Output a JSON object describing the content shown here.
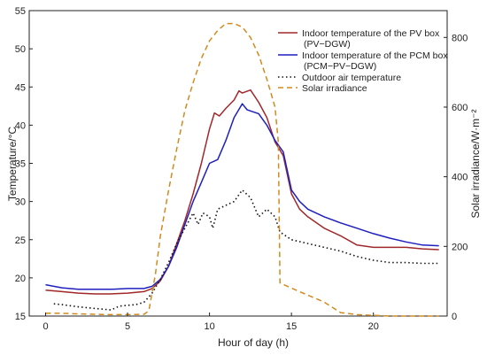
{
  "chart_data": {
    "type": "line",
    "title": "",
    "xlabel": "Hour of day (h)",
    "ylabel_left": "Temperature/°C",
    "ylabel_right": "Solar irradiance/W·m⁻²",
    "xlim": [
      -1,
      24.5
    ],
    "ylim_left": [
      15,
      55
    ],
    "ylim_right": [
      0,
      877
    ],
    "x_ticks": [
      0,
      5,
      10,
      15,
      20
    ],
    "y_ticks_left": [
      15,
      20,
      25,
      30,
      35,
      40,
      45,
      50,
      55
    ],
    "y_ticks_right": [
      0,
      200,
      400,
      600,
      800
    ],
    "grid": false,
    "legend_position": "top-right",
    "series": [
      {
        "name": "Indoor temperature of the PV box",
        "name_line2": "(PV−DGW)",
        "axis": "left",
        "color": "#a0282a",
        "style": "solid",
        "points": [
          [
            0,
            18.4
          ],
          [
            1,
            18.2
          ],
          [
            2,
            18.0
          ],
          [
            3,
            17.9
          ],
          [
            4,
            17.9
          ],
          [
            5,
            18.0
          ],
          [
            6,
            18.2
          ],
          [
            6.5,
            18.6
          ],
          [
            7,
            19.6
          ],
          [
            7.5,
            21.5
          ],
          [
            8,
            24.5
          ],
          [
            8.5,
            27.5
          ],
          [
            9,
            31
          ],
          [
            9.5,
            35
          ],
          [
            10,
            39.5
          ],
          [
            10.3,
            41.6
          ],
          [
            10.6,
            41.2
          ],
          [
            11,
            42.2
          ],
          [
            11.5,
            43.3
          ],
          [
            11.8,
            44.5
          ],
          [
            12,
            44.2
          ],
          [
            12.5,
            44.6
          ],
          [
            13,
            43
          ],
          [
            13.5,
            41
          ],
          [
            14,
            37.8
          ],
          [
            14.5,
            36
          ],
          [
            15,
            31
          ],
          [
            15.5,
            29
          ],
          [
            16,
            28
          ],
          [
            17,
            26.5
          ],
          [
            18,
            25.5
          ],
          [
            19,
            24.3
          ],
          [
            20,
            24.0
          ],
          [
            21,
            24.0
          ],
          [
            22,
            24.0
          ],
          [
            23,
            23.8
          ],
          [
            24,
            23.7
          ]
        ]
      },
      {
        "name": "Indoor temperature of the PCM box",
        "name_line2": "(PCM−PV−DGW)",
        "axis": "left",
        "color": "#1f1fbf",
        "style": "solid",
        "points": [
          [
            0,
            19.1
          ],
          [
            1,
            18.7
          ],
          [
            2,
            18.5
          ],
          [
            3,
            18.5
          ],
          [
            4,
            18.5
          ],
          [
            5,
            18.6
          ],
          [
            6,
            18.6
          ],
          [
            6.5,
            18.9
          ],
          [
            7,
            19.8
          ],
          [
            7.5,
            21.5
          ],
          [
            8,
            24
          ],
          [
            8.5,
            27
          ],
          [
            9,
            30
          ],
          [
            9.5,
            32.5
          ],
          [
            10,
            35
          ],
          [
            10.5,
            35.5
          ],
          [
            11,
            38
          ],
          [
            11.5,
            41
          ],
          [
            12,
            42.8
          ],
          [
            12.3,
            42
          ],
          [
            13,
            41.5
          ],
          [
            13.5,
            40
          ],
          [
            14,
            38
          ],
          [
            14.5,
            36.5
          ],
          [
            15,
            31.5
          ],
          [
            15.5,
            30
          ],
          [
            16,
            29
          ],
          [
            17,
            28
          ],
          [
            18,
            27.2
          ],
          [
            19,
            26.5
          ],
          [
            20,
            25.8
          ],
          [
            21,
            25.2
          ],
          [
            22,
            24.7
          ],
          [
            23,
            24.3
          ],
          [
            24,
            24.2
          ]
        ]
      },
      {
        "name": "Outdoor air temperature",
        "axis": "left",
        "color": "#111111",
        "style": "dotted",
        "points": [
          [
            0.5,
            16.6
          ],
          [
            1,
            16.5
          ],
          [
            2,
            16.2
          ],
          [
            3,
            16.0
          ],
          [
            4,
            15.8
          ],
          [
            4.5,
            16.3
          ],
          [
            5,
            16.4
          ],
          [
            5.5,
            16.5
          ],
          [
            6,
            16.8
          ],
          [
            6.5,
            18.0
          ],
          [
            7,
            19.8
          ],
          [
            7.5,
            22
          ],
          [
            8,
            24.5
          ],
          [
            8.5,
            26.5
          ],
          [
            9,
            28.5
          ],
          [
            9.3,
            27
          ],
          [
            9.6,
            28.5
          ],
          [
            10,
            28
          ],
          [
            10.2,
            26.5
          ],
          [
            10.5,
            29
          ],
          [
            11,
            29.5
          ],
          [
            11.5,
            30
          ],
          [
            12,
            31.5
          ],
          [
            12.5,
            30.5
          ],
          [
            13,
            28
          ],
          [
            13.5,
            29
          ],
          [
            14,
            28
          ],
          [
            14.3,
            26
          ],
          [
            15,
            25
          ],
          [
            16,
            24.5
          ],
          [
            17,
            24
          ],
          [
            18,
            23.5
          ],
          [
            19,
            22.8
          ],
          [
            20,
            22.3
          ],
          [
            21,
            22.0
          ],
          [
            22,
            22.0
          ],
          [
            23,
            21.9
          ],
          [
            24,
            21.9
          ]
        ]
      },
      {
        "name": "Solar irradiance",
        "axis": "right",
        "color": "#d28a1e",
        "style": "dashed",
        "points": [
          [
            0,
            8
          ],
          [
            1,
            8
          ],
          [
            2,
            6
          ],
          [
            3,
            5
          ],
          [
            4,
            4
          ],
          [
            5,
            4
          ],
          [
            6,
            5
          ],
          [
            6.3,
            15
          ],
          [
            6.7,
            120
          ],
          [
            7,
            230
          ],
          [
            7.5,
            360
          ],
          [
            8,
            480
          ],
          [
            8.5,
            590
          ],
          [
            9,
            670
          ],
          [
            9.5,
            740
          ],
          [
            10,
            790
          ],
          [
            10.5,
            820
          ],
          [
            11,
            840
          ],
          [
            11.5,
            840
          ],
          [
            12,
            830
          ],
          [
            12.5,
            800
          ],
          [
            13,
            750
          ],
          [
            13.5,
            680
          ],
          [
            14,
            600
          ],
          [
            14.2,
            500
          ],
          [
            14.3,
            95
          ],
          [
            15,
            80
          ],
          [
            16,
            60
          ],
          [
            17,
            40
          ],
          [
            18,
            10
          ],
          [
            19,
            4
          ],
          [
            20,
            2
          ],
          [
            21,
            0
          ],
          [
            22,
            0
          ],
          [
            23,
            0
          ],
          [
            24,
            0
          ]
        ]
      }
    ]
  }
}
